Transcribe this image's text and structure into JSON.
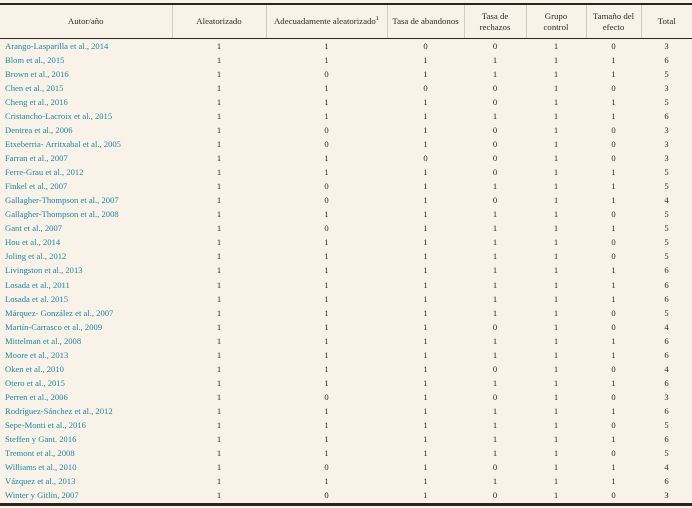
{
  "table": {
    "columns": [
      {
        "key": "autor",
        "label": "Autor/año"
      },
      {
        "key": "aleatorizado",
        "label": "Aleatorizado"
      },
      {
        "key": "adecuadamente-aleatorizado",
        "label": "Adecuadamente aleatorizado",
        "sup": "1"
      },
      {
        "key": "tasa-abandonos",
        "label": "Tasa de abandonos"
      },
      {
        "key": "tasa-rechazos",
        "label": "Tasa de rechazos"
      },
      {
        "key": "grupo-control",
        "label": "Grupo control"
      },
      {
        "key": "tamano-efecto",
        "label": "Tamaño del efecto"
      },
      {
        "key": "total",
        "label": "Total"
      }
    ],
    "rows": [
      {
        "autor": "Arango-Lasparilla et al., 2014",
        "values": [
          1,
          1,
          0,
          0,
          1,
          0,
          3
        ]
      },
      {
        "autor": "Blom et al., 2015",
        "values": [
          1,
          1,
          1,
          1,
          1,
          1,
          6
        ]
      },
      {
        "autor": "Brown et al., 2016",
        "values": [
          1,
          0,
          1,
          1,
          1,
          1,
          5
        ]
      },
      {
        "autor": "Chen et al., 2015",
        "values": [
          1,
          1,
          0,
          0,
          1,
          0,
          3
        ]
      },
      {
        "autor": "Cheng et al., 2016",
        "values": [
          1,
          1,
          1,
          0,
          1,
          1,
          5
        ]
      },
      {
        "autor": "Cristancho-Lacroix et al., 2015",
        "values": [
          1,
          1,
          1,
          1,
          1,
          1,
          6
        ]
      },
      {
        "autor": "Dentrea et al., 2006",
        "values": [
          1,
          0,
          1,
          0,
          1,
          0,
          3
        ]
      },
      {
        "autor": "Etxeberria- Arritxabal et al., 2005",
        "values": [
          1,
          0,
          1,
          0,
          1,
          0,
          3
        ]
      },
      {
        "autor": "Farran et al., 2007",
        "values": [
          1,
          1,
          0,
          0,
          1,
          0,
          3
        ]
      },
      {
        "autor": "Ferre-Grau et al., 2012",
        "values": [
          1,
          1,
          1,
          0,
          1,
          1,
          5
        ]
      },
      {
        "autor": "Finkel et al., 2007",
        "values": [
          1,
          0,
          1,
          1,
          1,
          1,
          5
        ]
      },
      {
        "autor": "Gallagher-Thompson et al., 2007",
        "values": [
          1,
          0,
          1,
          0,
          1,
          1,
          4
        ]
      },
      {
        "autor": "Gallagher-Thompson et al., 2008",
        "values": [
          1,
          1,
          1,
          1,
          1,
          0,
          5
        ]
      },
      {
        "autor": "Gant et al., 2007",
        "values": [
          1,
          0,
          1,
          1,
          1,
          1,
          5
        ]
      },
      {
        "autor": "Hou et al., 2014",
        "values": [
          1,
          1,
          1,
          1,
          1,
          0,
          5
        ]
      },
      {
        "autor": "Joling et al., 2012",
        "values": [
          1,
          1,
          1,
          1,
          1,
          0,
          5
        ]
      },
      {
        "autor": "Livingston et al., 2013",
        "values": [
          1,
          1,
          1,
          1,
          1,
          1,
          6
        ]
      },
      {
        "autor": "Losada et al., 2011",
        "values": [
          1,
          1,
          1,
          1,
          1,
          1,
          6
        ]
      },
      {
        "autor": "Losada et al. 2015",
        "values": [
          1,
          1,
          1,
          1,
          1,
          1,
          6
        ]
      },
      {
        "autor": "Márquez- González et al., 2007",
        "values": [
          1,
          1,
          1,
          1,
          1,
          0,
          5
        ]
      },
      {
        "autor": "Martín-Carrasco et al., 2009",
        "values": [
          1,
          1,
          1,
          0,
          1,
          0,
          4
        ]
      },
      {
        "autor": "Mittelman et al., 2008",
        "values": [
          1,
          1,
          1,
          1,
          1,
          1,
          6
        ]
      },
      {
        "autor": "Moore et al., 2013",
        "values": [
          1,
          1,
          1,
          1,
          1,
          1,
          6
        ]
      },
      {
        "autor": "Oken et al., 2010",
        "values": [
          1,
          1,
          1,
          0,
          1,
          0,
          4
        ]
      },
      {
        "autor": "Otero et al., 2015",
        "values": [
          1,
          1,
          1,
          1,
          1,
          1,
          6
        ]
      },
      {
        "autor": "Perren et al., 2006",
        "values": [
          1,
          0,
          1,
          0,
          1,
          0,
          3
        ]
      },
      {
        "autor": "Rodríguez-Sánchez et al., 2012",
        "values": [
          1,
          1,
          1,
          1,
          1,
          1,
          6
        ]
      },
      {
        "autor": "Sepe-Monti et al., 2016",
        "values": [
          1,
          1,
          1,
          1,
          1,
          0,
          5
        ]
      },
      {
        "autor": "Steffen y Gant. 2016",
        "values": [
          1,
          1,
          1,
          1,
          1,
          1,
          6
        ]
      },
      {
        "autor": "Tremont et al., 2008",
        "values": [
          1,
          1,
          1,
          1,
          1,
          0,
          5
        ]
      },
      {
        "autor": "Williams et al., 2010",
        "values": [
          1,
          0,
          1,
          0,
          1,
          1,
          4
        ]
      },
      {
        "autor": "Vázquez et al., 2013",
        "values": [
          1,
          1,
          1,
          1,
          1,
          1,
          6
        ]
      },
      {
        "autor": "Winter y Gitlin, 2007",
        "values": [
          1,
          0,
          1,
          0,
          1,
          0,
          3
        ]
      }
    ]
  },
  "colors": {
    "background": "#f9f2e9",
    "text": "#2d2a24",
    "author_link": "#1f87a3",
    "border_dark": "#29251f",
    "separator": "#d4ccbe"
  }
}
